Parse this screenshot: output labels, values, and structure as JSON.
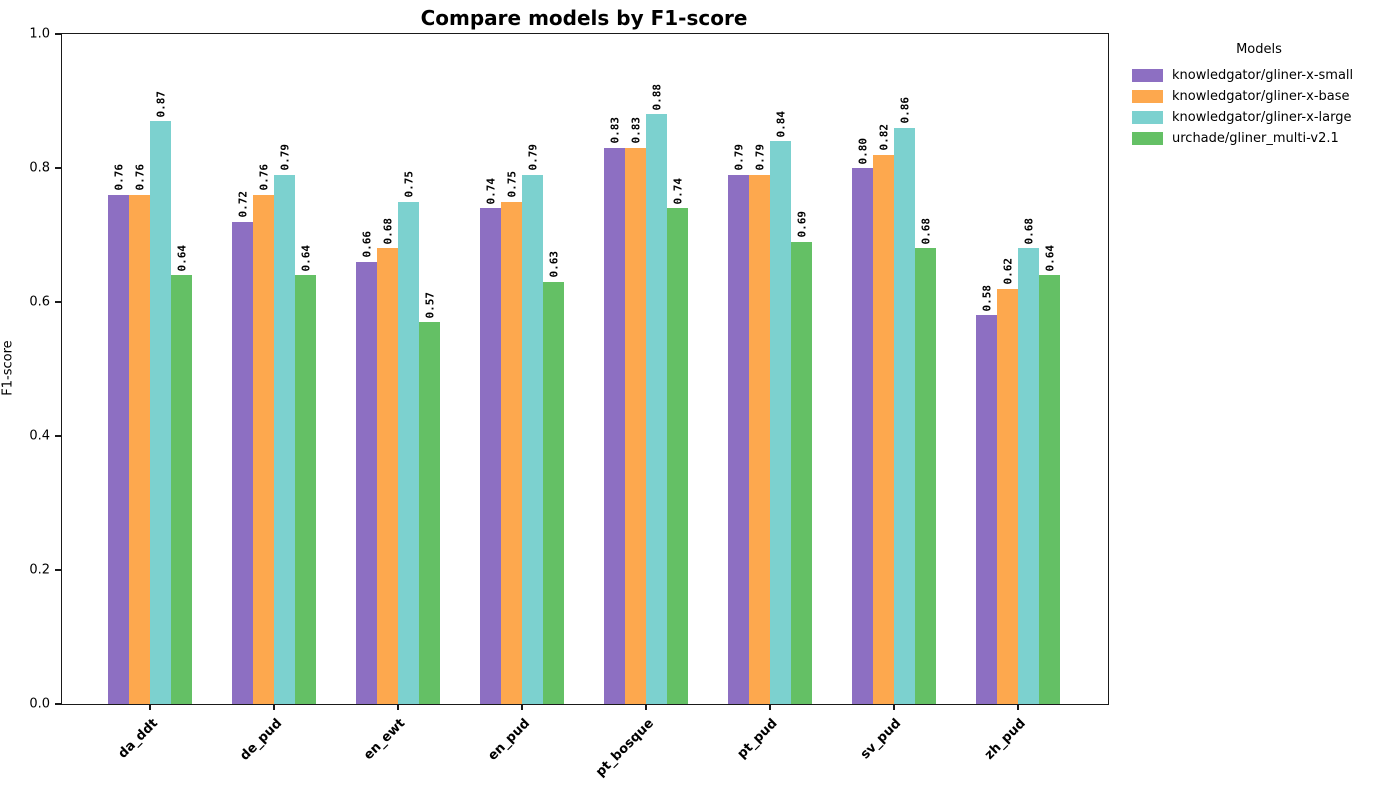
{
  "chart_data": {
    "type": "bar",
    "title": "Compare models by F1-score",
    "xlabel": "",
    "ylabel": "F1-score",
    "ylim": [
      0.0,
      1.0
    ],
    "yticks": [
      "0.0",
      "0.2",
      "0.4",
      "0.6",
      "0.8",
      "1.0"
    ],
    "grid": false,
    "legend_title": "Models",
    "legend_position": "outside-upper-right",
    "bar_label_style": "values rotated 90 degrees above bars, 2 decimals, bold",
    "xtick_label_style": "rotated 45 degrees, bold",
    "categories": [
      "da_ddt",
      "de_pud",
      "en_ewt",
      "en_pud",
      "pt_bosque",
      "pt_pud",
      "sv_pud",
      "zh_pud"
    ],
    "series": [
      {
        "name": "knowledgator/gliner-x-small",
        "color": "#8d6fc2",
        "values": [
          0.76,
          0.72,
          0.66,
          0.74,
          0.83,
          0.79,
          0.8,
          0.58
        ]
      },
      {
        "name": "knowledgator/gliner-x-base",
        "color": "#fda84e",
        "values": [
          0.76,
          0.76,
          0.68,
          0.75,
          0.83,
          0.79,
          0.82,
          0.62
        ]
      },
      {
        "name": "knowledgator/gliner-x-large",
        "color": "#7cd1cf",
        "values": [
          0.87,
          0.79,
          0.75,
          0.79,
          0.88,
          0.84,
          0.86,
          0.68
        ]
      },
      {
        "name": "urchade/gliner_multi-v2.1",
        "color": "#64c065",
        "values": [
          0.64,
          0.64,
          0.57,
          0.63,
          0.74,
          0.69,
          0.68,
          0.64
        ]
      }
    ],
    "colors": {
      "spine": "#1a1a1a",
      "text": "#000000",
      "background": "#ffffff"
    }
  }
}
